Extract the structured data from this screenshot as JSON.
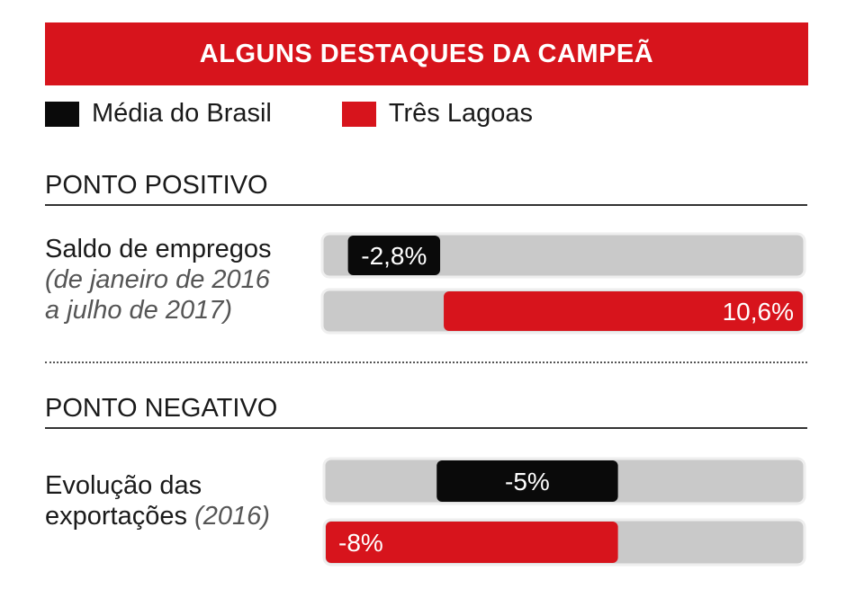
{
  "banner": {
    "title": "ALGUNS DESTAQUES DA CAMPEÃ",
    "color": "#d7141c"
  },
  "legend": [
    {
      "label": "Média do Brasil",
      "color": "#0a0a0a"
    },
    {
      "label": "Três Lagoas",
      "color": "#d7141c"
    }
  ],
  "sections": {
    "positive": {
      "title": "PONTO POSITIVO",
      "label": "Saldo de empregos",
      "note_line1": "(de janeiro de 2016",
      "note_line2": "a julho de 2017)"
    },
    "negative": {
      "title": "PONTO NEGATIVO",
      "label_line1": "Evolução das",
      "label_line2": "exportações",
      "note": "(2016)"
    }
  },
  "chart_data": [
    {
      "type": "bar",
      "title": "PONTO POSITIVO",
      "category": "Saldo de empregos (de janeiro de 2016 a julho de 2017)",
      "series": [
        {
          "name": "Média do Brasil",
          "value": -2.8,
          "label": "-2,8%",
          "color": "#0a0a0a"
        },
        {
          "name": "Três Lagoas",
          "value": 10.6,
          "label": "10,6%",
          "color": "#d7141c"
        }
      ],
      "xlim": [
        -3.5,
        10.6
      ]
    },
    {
      "type": "bar",
      "title": "PONTO NEGATIVO",
      "category": "Evolução das exportações (2016)",
      "series": [
        {
          "name": "Média do Brasil",
          "value": -5,
          "label": "-5%",
          "color": "#0a0a0a"
        },
        {
          "name": "Três Lagoas",
          "value": -8,
          "label": "-8%",
          "color": "#d7141c"
        }
      ],
      "xlim": [
        -8,
        5
      ]
    }
  ]
}
